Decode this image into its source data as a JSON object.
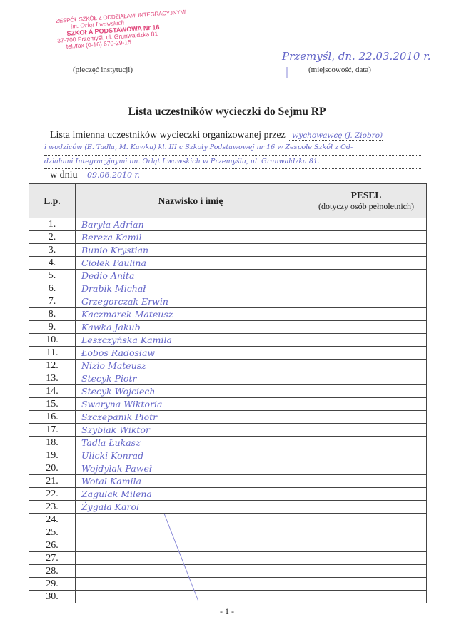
{
  "stamp": {
    "line1": "ZESPÓŁ SZKÓŁ Z ODDZIAŁAMI INTEGRACYJNYMI",
    "line2": "im. Orląt Lwowskich",
    "line3": "SZKOŁA PODSTAWOWA Nr 16",
    "line4": "37-700 Przemyśl, ul. Grunwaldzka 81",
    "line5": "tel./fax (0-16) 670-29-15",
    "color": "#e0457a"
  },
  "header": {
    "stamp_caption": "(pieczęć instytucji)",
    "place_date": "Przemyśl, dn. 22.03.2010 r.",
    "place_caption": "(miejscowość, data)"
  },
  "title": "Lista uczestników wycieczki do Sejmu RP",
  "intro": {
    "label": "Lista imienna uczestników wycieczki organizowanej przez",
    "organizer_1": "wychowawcę (J. Ziobro)",
    "organizer_2": "i wodziców (E. Tadla, M. Kawka) kl. III c Szkoły Podstawowej nr 16 w Zespole Szkół z Od-",
    "organizer_3": "działami Integracyjnymi im. Orląt Lwowskich w Przemyślu, ul. Grunwaldzka 81.",
    "date_label": "w dniu",
    "date_value": "09.06.2010 r."
  },
  "table": {
    "headers": {
      "lp": "L.p.",
      "name": "Nazwisko i imię",
      "pesel": "PESEL",
      "pesel_note": "(dotyczy osób pełnoletnich)"
    },
    "rows": [
      {
        "lp": "1.",
        "name": "Baryła Adrian"
      },
      {
        "lp": "2.",
        "name": "Bereza Kamil"
      },
      {
        "lp": "3.",
        "name": "Bunio Krystian"
      },
      {
        "lp": "4.",
        "name": "Ciołek Paulina"
      },
      {
        "lp": "5.",
        "name": "Dedio Anita"
      },
      {
        "lp": "6.",
        "name": "Drabik Michał"
      },
      {
        "lp": "7.",
        "name": "Grzegorczak Erwin"
      },
      {
        "lp": "8.",
        "name": "Kaczmarek Mateusz"
      },
      {
        "lp": "9.",
        "name": "Kawka Jakub"
      },
      {
        "lp": "10.",
        "name": "Leszczyńska Kamila"
      },
      {
        "lp": "11.",
        "name": "Łobos Radosław"
      },
      {
        "lp": "12.",
        "name": "Nizio Mateusz"
      },
      {
        "lp": "13.",
        "name": "Stecyk Piotr"
      },
      {
        "lp": "14.",
        "name": "Stecyk Wojciech"
      },
      {
        "lp": "15.",
        "name": "Swaryna Wiktoria"
      },
      {
        "lp": "16.",
        "name": "Szczepanik Piotr"
      },
      {
        "lp": "17.",
        "name": "Szybiak Wiktor"
      },
      {
        "lp": "18.",
        "name": "Tadla Łukasz"
      },
      {
        "lp": "19.",
        "name": "Ulicki Konrad"
      },
      {
        "lp": "20.",
        "name": "Wojdylak Paweł"
      },
      {
        "lp": "21.",
        "name": "Wotal Kamila"
      },
      {
        "lp": "22.",
        "name": "Zagulak Milena"
      },
      {
        "lp": "23.",
        "name": "Żygała Karol"
      },
      {
        "lp": "24.",
        "name": ""
      },
      {
        "lp": "25.",
        "name": ""
      },
      {
        "lp": "26.",
        "name": ""
      },
      {
        "lp": "27.",
        "name": ""
      },
      {
        "lp": "28.",
        "name": ""
      },
      {
        "lp": "29.",
        "name": ""
      },
      {
        "lp": "30.",
        "name": ""
      }
    ]
  },
  "footer": "- 1 -",
  "ink_color": "#6466c8"
}
